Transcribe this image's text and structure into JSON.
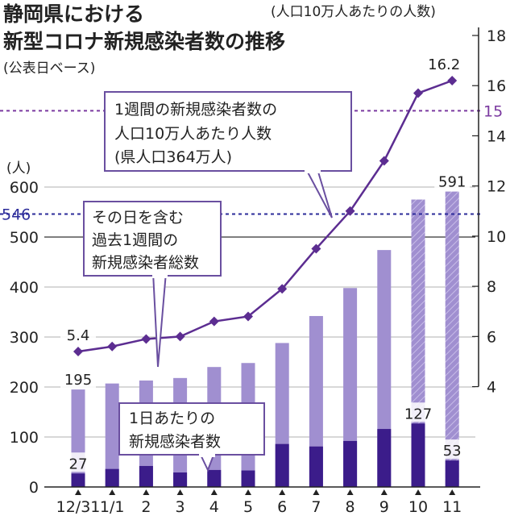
{
  "chart_data": {
    "type": "bar+line",
    "title_line1": "静岡県における",
    "title_line2": "新型コロナ新規感染者数の推移",
    "subtitle": "(公表日ベース)",
    "right_axis_label": "(人口10万人あたりの人数)",
    "left_axis_label": "(人)",
    "categories": [
      "12/31",
      "1/1",
      "2",
      "3",
      "4",
      "5",
      "6",
      "7",
      "8",
      "9",
      "10",
      "11"
    ],
    "left_axis": {
      "ylim": [
        0,
        600
      ],
      "ticks": [
        0,
        100,
        200,
        300,
        400,
        500,
        600
      ]
    },
    "right_axis": {
      "ylim": [
        0,
        18
      ],
      "ticks": [
        4,
        6,
        8,
        10,
        12,
        14,
        16,
        18
      ],
      "visible_min": 4
    },
    "series": [
      {
        "name": "その日を含む過去1週間の新規感染者総数",
        "type": "bar",
        "axis": "left",
        "color": "#a08fd0",
        "hatched_last": 2,
        "values": [
          195,
          207,
          213,
          218,
          240,
          248,
          288,
          342,
          398,
          474,
          575,
          591
        ]
      },
      {
        "name": "1日あたりの新規感染者数",
        "type": "bar",
        "axis": "left",
        "color": "#3b1c8a",
        "values": [
          27,
          36,
          42,
          29,
          34,
          33,
          86,
          81,
          92,
          116,
          127,
          53
        ]
      },
      {
        "name": "1週間の新規感染者数の人口10万人あたり人数",
        "type": "line",
        "axis": "right",
        "color": "#5c2d91",
        "values": [
          5.4,
          5.6,
          5.9,
          6.0,
          6.6,
          6.8,
          7.9,
          9.5,
          11.0,
          13.0,
          15.7,
          16.2
        ]
      }
    ],
    "reference_lines": [
      {
        "label": "546",
        "value": 546,
        "axis": "left",
        "color": "#2b2b9a"
      },
      {
        "label": "15",
        "value": 15,
        "axis": "right",
        "color": "#7b3aa0"
      }
    ],
    "data_labels": {
      "weekly": [
        {
          "index": 0,
          "text": "195"
        },
        {
          "index": 11,
          "text": "591"
        }
      ],
      "daily": [
        {
          "index": 0,
          "text": "27"
        },
        {
          "index": 10,
          "text": "127"
        },
        {
          "index": 11,
          "text": "53"
        }
      ],
      "per100k": [
        {
          "index": 0,
          "text": "5.4"
        },
        {
          "index": 11,
          "text": "16.2"
        }
      ]
    },
    "annotations": {
      "per100k": [
        "1週間の新規感染者数の",
        "人口10万人あたり人数",
        "(県人口364万人)"
      ],
      "weekly": [
        "その日を含む",
        "過去1週間の",
        "新規感染者総数"
      ],
      "daily": [
        "1日あたりの",
        "新規感染者数"
      ]
    }
  }
}
